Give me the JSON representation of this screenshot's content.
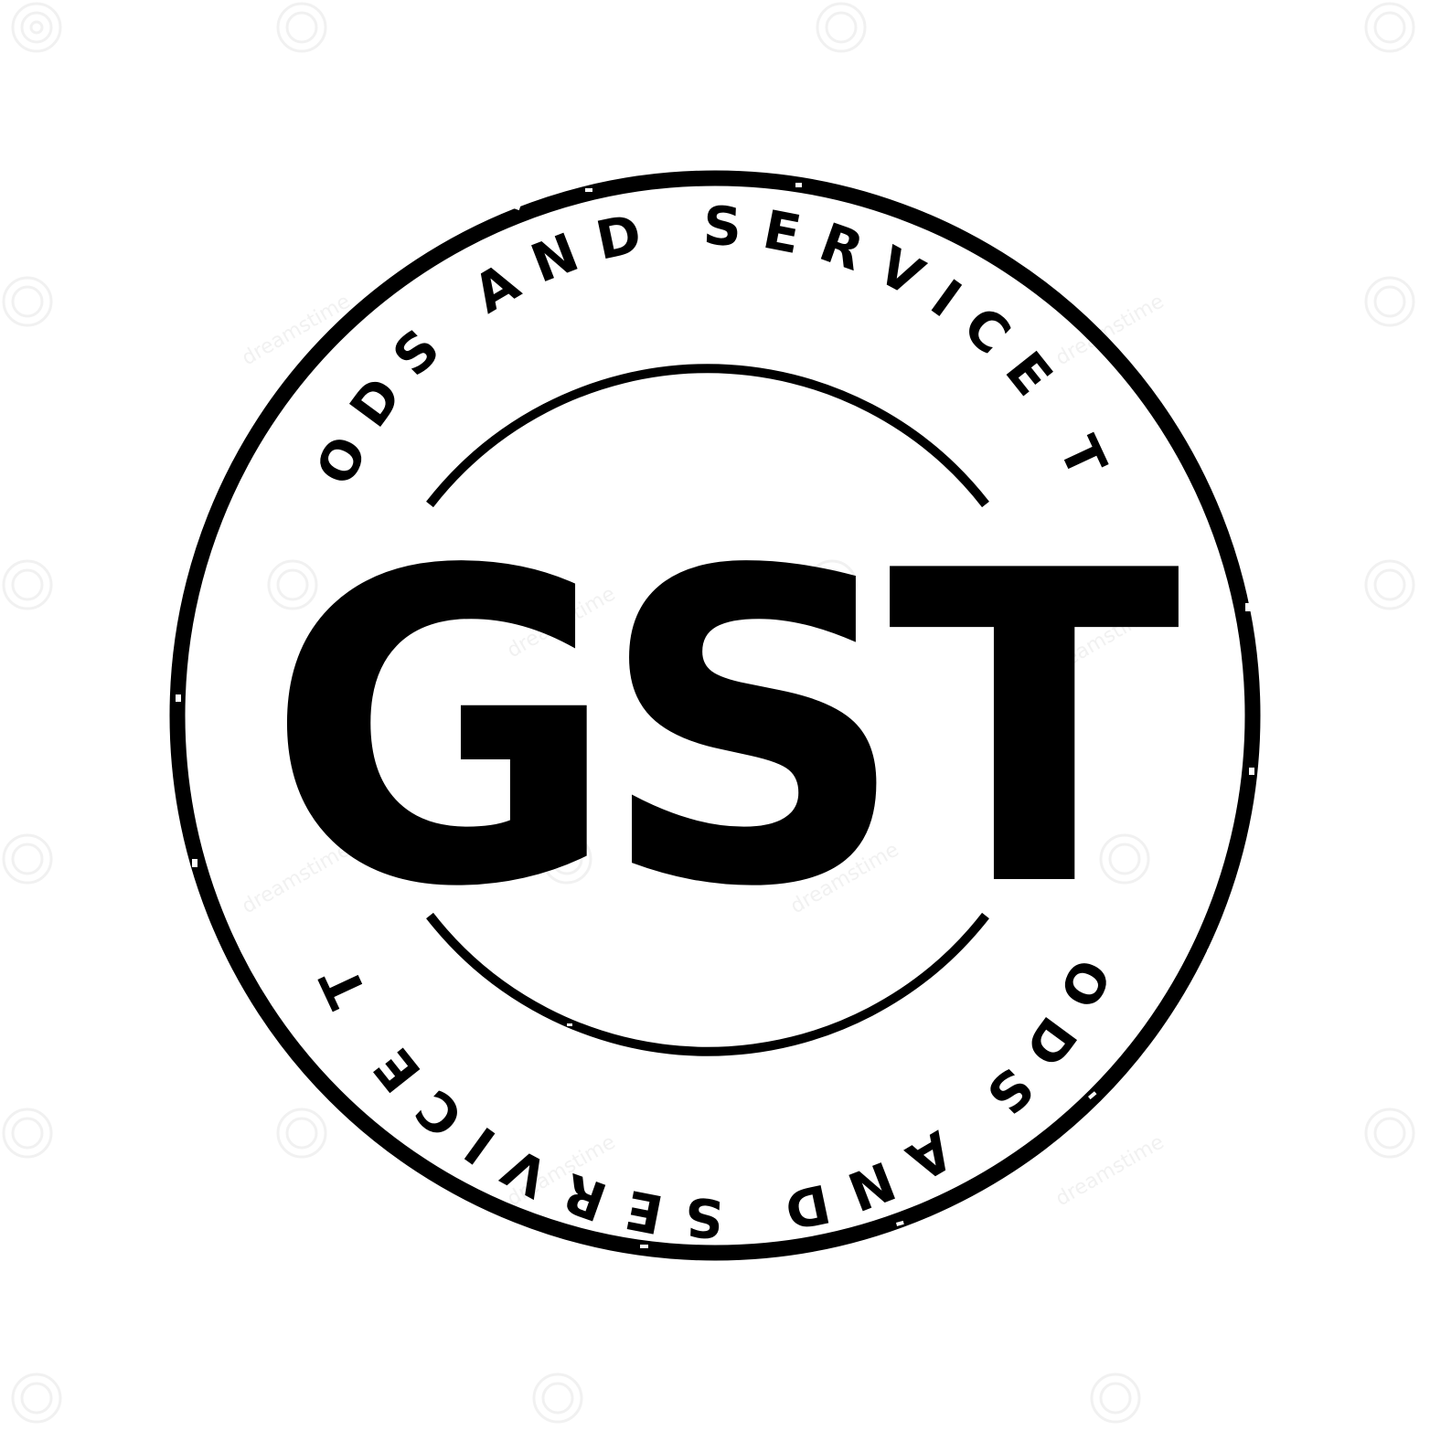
{
  "stamp": {
    "center_text": "GST",
    "top_arc_text": "GOODS AND SERVICE TAX",
    "bottom_arc_text": "GOODS AND SERVICE TAX"
  },
  "watermark": {
    "text": "dreamstime"
  },
  "colors": {
    "ink": "#000000",
    "background": "#ffffff",
    "watermark": "#e6e6e6"
  }
}
